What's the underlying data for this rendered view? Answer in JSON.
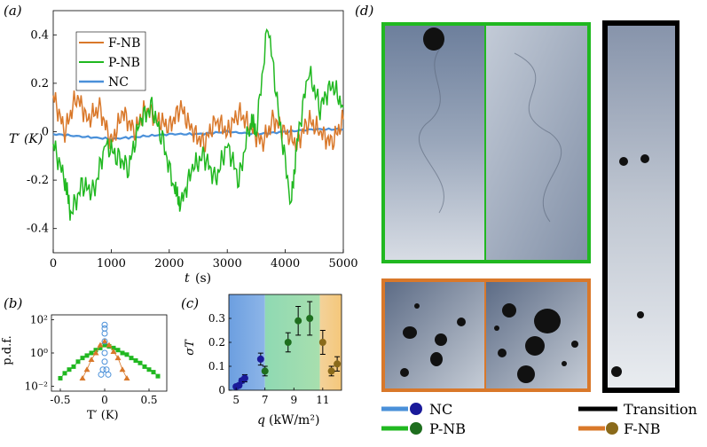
{
  "panel_labels": {
    "a": "(a)",
    "b": "(b)",
    "c": "(c)",
    "d": "(d)"
  },
  "colors": {
    "fnb": "#d9782a",
    "pnb": "#20b820",
    "nc": "#4a90d9",
    "transition": "#000000",
    "nc_dot": "#1a1a9a",
    "pnb_dot": "#1e6e1e",
    "fnb_dot": "#8a6a1a"
  },
  "chart_data": [
    {
      "id": "a",
      "type": "line",
      "xlabel_var": "t",
      "xlabel_unit": "(s)",
      "ylabel": "T′ (K)",
      "xlim": [
        0,
        5000
      ],
      "ylim": [
        -0.5,
        0.5
      ],
      "xticks": [
        0,
        1000,
        2000,
        3000,
        4000,
        5000
      ],
      "yticks": [
        -0.4,
        -0.2,
        0,
        0.2,
        0.4
      ],
      "ytick_labels": [
        "-0.4",
        "-0.2",
        "0",
        "0.2",
        "0.4"
      ],
      "legend": [
        "F-NB",
        "P-NB",
        "NC"
      ],
      "series": [
        {
          "name": "F-NB",
          "x": [
            0,
            200,
            400,
            600,
            800,
            1000,
            1200,
            1400,
            1600,
            1800,
            2000,
            2200,
            2400,
            2600,
            2800,
            3000,
            3200,
            3400,
            3600,
            3800,
            4000,
            4200,
            4400,
            4600,
            4800,
            5000
          ],
          "values": [
            0.15,
            0.0,
            0.15,
            0.05,
            0.1,
            -0.05,
            0.08,
            0.0,
            0.1,
            0.05,
            0.02,
            0.1,
            0.0,
            -0.05,
            0.05,
            0.0,
            0.08,
            0.02,
            -0.05,
            0.05,
            0.0,
            -0.05,
            0.05,
            0.0,
            -0.05,
            0.05
          ]
        },
        {
          "name": "P-NB",
          "x": [
            0,
            200,
            300,
            500,
            700,
            900,
            1100,
            1300,
            1500,
            1700,
            1900,
            2100,
            2200,
            2400,
            2600,
            2800,
            3000,
            3200,
            3400,
            3500,
            3700,
            3900,
            4100,
            4200,
            4400,
            4600,
            4800,
            5000
          ],
          "values": [
            -0.05,
            -0.2,
            -0.34,
            -0.22,
            -0.25,
            -0.05,
            -0.1,
            -0.15,
            0.05,
            0.1,
            -0.05,
            -0.25,
            -0.3,
            -0.15,
            -0.1,
            -0.2,
            -0.05,
            -0.2,
            0.05,
            0.0,
            0.45,
            0.05,
            -0.3,
            -0.05,
            0.25,
            0.1,
            0.2,
            0.1
          ]
        },
        {
          "name": "NC",
          "x": [
            0,
            500,
            1000,
            1500,
            2000,
            2500,
            3000,
            3500,
            4000,
            4500,
            5000
          ],
          "values": [
            -0.01,
            -0.02,
            -0.03,
            -0.02,
            -0.01,
            -0.01,
            0.0,
            -0.01,
            0.0,
            0.01,
            0.01
          ]
        }
      ]
    },
    {
      "id": "b",
      "type": "scatter",
      "xlabel": "T′ (K)",
      "ylabel": "p.d.f.",
      "xlim": [
        -0.6,
        0.7
      ],
      "yscale": "log",
      "xticks": [
        -0.5,
        0,
        0.5
      ],
      "xtick_labels": [
        "-0.5",
        "0",
        "0.5"
      ],
      "yticks": [
        "10²",
        "10⁰",
        "10⁻²"
      ],
      "series": [
        {
          "name": "P-NB",
          "x": [
            -0.5,
            -0.45,
            -0.4,
            -0.35,
            -0.3,
            -0.25,
            -0.2,
            -0.15,
            -0.1,
            -0.05,
            0.0,
            0.05,
            0.1,
            0.15,
            0.2,
            0.25,
            0.3,
            0.35,
            0.4,
            0.45,
            0.5,
            0.55,
            0.6
          ],
          "values": [
            0.03,
            0.06,
            0.1,
            0.15,
            0.3,
            0.5,
            0.7,
            1.0,
            1.5,
            2.0,
            3.0,
            2.5,
            2.0,
            1.5,
            1.0,
            0.8,
            0.5,
            0.35,
            0.25,
            0.15,
            0.1,
            0.07,
            0.04
          ]
        },
        {
          "name": "F-NB",
          "x": [
            -0.25,
            -0.2,
            -0.15,
            -0.1,
            -0.05,
            0.0,
            0.05,
            0.1,
            0.15,
            0.2,
            0.25
          ],
          "values": [
            0.03,
            0.1,
            0.4,
            1.0,
            3.0,
            5.0,
            3.0,
            1.2,
            0.5,
            0.1,
            0.03
          ]
        },
        {
          "name": "NC",
          "x": [
            0.0,
            0.0,
            0.0,
            0.0,
            0.0,
            0.0,
            -0.02,
            0.02,
            -0.04,
            0.04
          ],
          "values": [
            50,
            30,
            15,
            5,
            1,
            0.3,
            0.1,
            0.1,
            0.05,
            0.05
          ]
        }
      ]
    },
    {
      "id": "c",
      "type": "scatter",
      "xlabel_var": "q",
      "xlabel_unit": "(kW/m²)",
      "ylabel": "σT",
      "xlim": [
        4.5,
        12.3
      ],
      "ylim": [
        0,
        0.4
      ],
      "xticks": [
        5,
        7,
        9,
        11
      ],
      "yticks": [
        0,
        0.1,
        0.2,
        0.3
      ],
      "ytick_labels": [
        "0",
        "0.1",
        "0.2",
        "0.3"
      ],
      "regions": [
        {
          "name": "NC",
          "from": 4.5,
          "to": 7.0
        },
        {
          "name": "P-NB",
          "from": 7.0,
          "to": 10.8
        },
        {
          "name": "F-NB",
          "from": 10.8,
          "to": 12.3
        }
      ],
      "series": [
        {
          "name": "NC",
          "x": [
            5.0,
            5.2,
            5.4,
            5.6,
            6.7
          ],
          "values": [
            0.015,
            0.02,
            0.04,
            0.05,
            0.13
          ],
          "err": [
            0.005,
            0.008,
            0.01,
            0.015,
            0.025
          ]
        },
        {
          "name": "P-NB",
          "x": [
            7.0,
            8.6,
            9.3,
            10.1
          ],
          "values": [
            0.08,
            0.2,
            0.29,
            0.3
          ],
          "err": [
            0.02,
            0.04,
            0.06,
            0.07
          ]
        },
        {
          "name": "F-NB",
          "x": [
            11.0,
            11.6,
            12.0
          ],
          "values": [
            0.2,
            0.08,
            0.11
          ],
          "err": [
            0.05,
            0.02,
            0.03
          ]
        }
      ]
    }
  ],
  "legend_d": [
    {
      "label": "NC"
    },
    {
      "label": "P-NB"
    },
    {
      "label": "Transition"
    },
    {
      "label": "F-NB"
    }
  ]
}
